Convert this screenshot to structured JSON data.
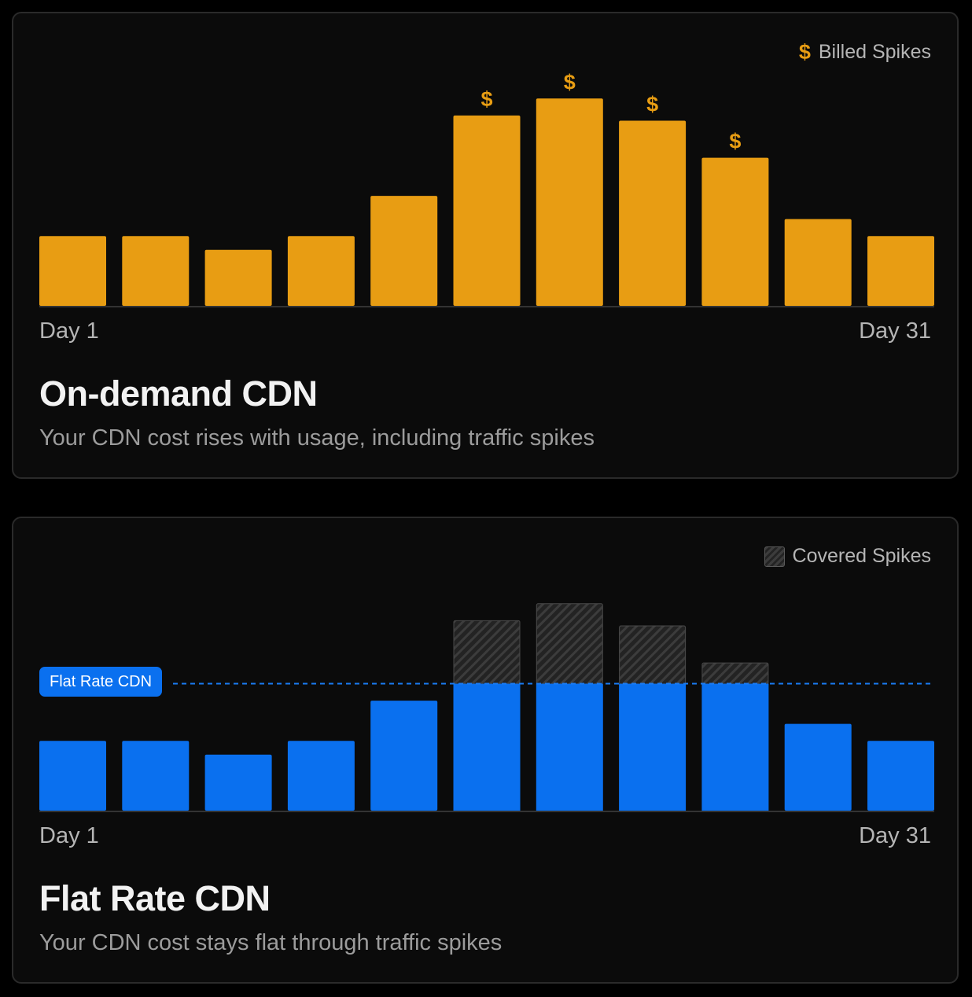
{
  "on_demand": {
    "legend": {
      "icon": "dollar-icon",
      "label": "Billed Spikes"
    },
    "axis": {
      "start_label": "Day 1",
      "end_label": "Day 31"
    },
    "title": "On-demand CDN",
    "subtitle": "Your CDN cost rises with usage, including traffic spikes",
    "spike_marker": "$"
  },
  "flat_rate": {
    "legend": {
      "icon": "hatched-swatch-icon",
      "label": "Covered Spikes"
    },
    "axis": {
      "start_label": "Day 1",
      "end_label": "Day 31"
    },
    "title": "Flat Rate CDN",
    "subtitle": "Your CDN cost stays flat through traffic spikes",
    "flat_line_label": "Flat Rate CDN"
  },
  "colors": {
    "on_demand_bar": "#e89d13",
    "flat_rate_bar": "#0a70ef",
    "flat_line": "#1a7cf5",
    "covered_hatch": "#3c3c3c",
    "baseline": "#333333"
  },
  "chart_data": [
    {
      "type": "bar",
      "title": "On-demand CDN",
      "xlabel": "",
      "ylabel": "",
      "x_tick_labels": [
        "Day 1",
        "Day 31"
      ],
      "values": [
        33,
        33,
        26.5,
        33,
        52,
        90,
        98,
        87.5,
        70,
        41,
        33
      ],
      "billed_spike": [
        false,
        false,
        false,
        false,
        false,
        true,
        true,
        true,
        true,
        false,
        false
      ],
      "ylim": [
        0,
        110
      ],
      "grid": false,
      "legend": "top-right"
    },
    {
      "type": "bar",
      "title": "Flat Rate CDN",
      "xlabel": "",
      "ylabel": "",
      "x_tick_labels": [
        "Day 1",
        "Day 31"
      ],
      "values": [
        33,
        33,
        26.5,
        33,
        52,
        90,
        98,
        87.5,
        70,
        41,
        33
      ],
      "flat_rate_cap": 60,
      "ylim": [
        0,
        110
      ],
      "grid": false,
      "legend": "top-right"
    }
  ]
}
